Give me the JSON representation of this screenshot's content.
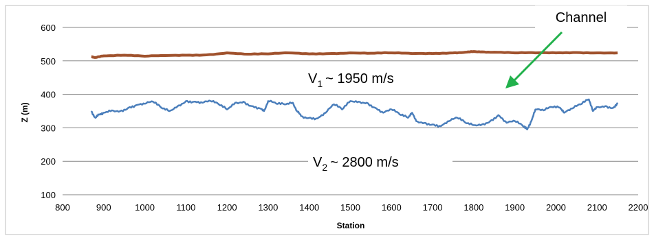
{
  "chart_data": {
    "type": "line",
    "xlabel": "Station",
    "ylabel": "Z (m)",
    "xlim": [
      800,
      2200
    ],
    "ylim": [
      100,
      600
    ],
    "xticks": [
      "800",
      "900",
      "1000",
      "1100",
      "1200",
      "1300",
      "1400",
      "1500",
      "1600",
      "1700",
      "1800",
      "1900",
      "2000",
      "2100",
      "2200"
    ],
    "yticks": [
      "100",
      "200",
      "300",
      "400",
      "500",
      "600"
    ],
    "grid": "horizontal",
    "legend": "none",
    "series": [
      {
        "color": "#a0522d",
        "x": [
          870,
          880,
          900,
          950,
          1000,
          1050,
          1100,
          1150,
          1200,
          1250,
          1300,
          1350,
          1400,
          1450,
          1500,
          1550,
          1600,
          1650,
          1700,
          1750,
          1780,
          1800,
          1820,
          1850,
          1900,
          1950,
          2000,
          2050,
          2100,
          2150
        ],
        "values": [
          513,
          510,
          515,
          517,
          514,
          516,
          517,
          518,
          524,
          520,
          521,
          524,
          521,
          522,
          524,
          523,
          524,
          522,
          522,
          524,
          526,
          528,
          527,
          526,
          524,
          524,
          524,
          525,
          524,
          524
        ]
      },
      {
        "color": "#4a7ebb",
        "x": [
          870,
          880,
          890,
          900,
          920,
          940,
          960,
          980,
          1000,
          1020,
          1040,
          1060,
          1080,
          1100,
          1120,
          1140,
          1160,
          1180,
          1200,
          1220,
          1240,
          1260,
          1280,
          1290,
          1300,
          1320,
          1340,
          1360,
          1370,
          1380,
          1400,
          1420,
          1440,
          1460,
          1480,
          1500,
          1520,
          1540,
          1560,
          1580,
          1600,
          1620,
          1640,
          1650,
          1660,
          1680,
          1700,
          1720,
          1740,
          1760,
          1780,
          1800,
          1820,
          1840,
          1860,
          1880,
          1900,
          1920,
          1930,
          1940,
          1950,
          1970,
          1990,
          2010,
          2020,
          2040,
          2060,
          2080,
          2090,
          2100,
          2120,
          2140,
          2150
        ],
        "values": [
          350,
          330,
          340,
          345,
          352,
          350,
          360,
          368,
          372,
          378,
          360,
          350,
          365,
          380,
          378,
          375,
          380,
          370,
          355,
          375,
          378,
          365,
          358,
          350,
          380,
          372,
          370,
          375,
          350,
          335,
          330,
          328,
          345,
          370,
          355,
          380,
          378,
          375,
          360,
          345,
          355,
          340,
          330,
          345,
          320,
          315,
          310,
          305,
          320,
          330,
          315,
          308,
          310,
          320,
          338,
          315,
          320,
          305,
          295,
          320,
          355,
          352,
          362,
          360,
          345,
          358,
          370,
          385,
          350,
          362,
          365,
          360,
          375
        ]
      }
    ],
    "annotations": [
      {
        "prefix": "V",
        "sub": "1",
        "suffix": "~ 1950 m/s"
      },
      {
        "prefix": "V",
        "sub": "2",
        "suffix": "~ 2800 m/s"
      },
      {
        "label": "Channel",
        "arrow_color": "#22b14c"
      }
    ]
  }
}
